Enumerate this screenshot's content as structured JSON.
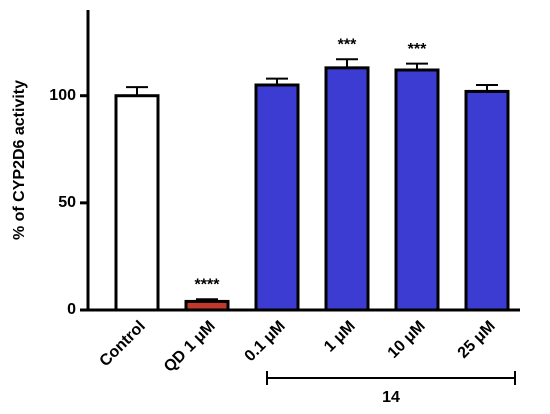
{
  "chart_data": {
    "type": "bar",
    "y_label": "% of CYP2D6 activity",
    "categories": [
      "Control",
      "QD 1 μM",
      "0.1 μM",
      "1 μM",
      "10 μM",
      "25 μM"
    ],
    "values": [
      100,
      4,
      105,
      113,
      112,
      102
    ],
    "errors": [
      4,
      1,
      3,
      4,
      3,
      3
    ],
    "colors": [
      "#ffffff",
      "#c0392b",
      "#3c3cd2",
      "#3c3cd2",
      "#3c3cd2",
      "#3c3cd2"
    ],
    "significance": [
      null,
      "****",
      null,
      "***",
      "***",
      null
    ],
    "group_label": "14",
    "ylim": [
      0,
      140
    ],
    "yticks": [
      0,
      50,
      100
    ]
  }
}
